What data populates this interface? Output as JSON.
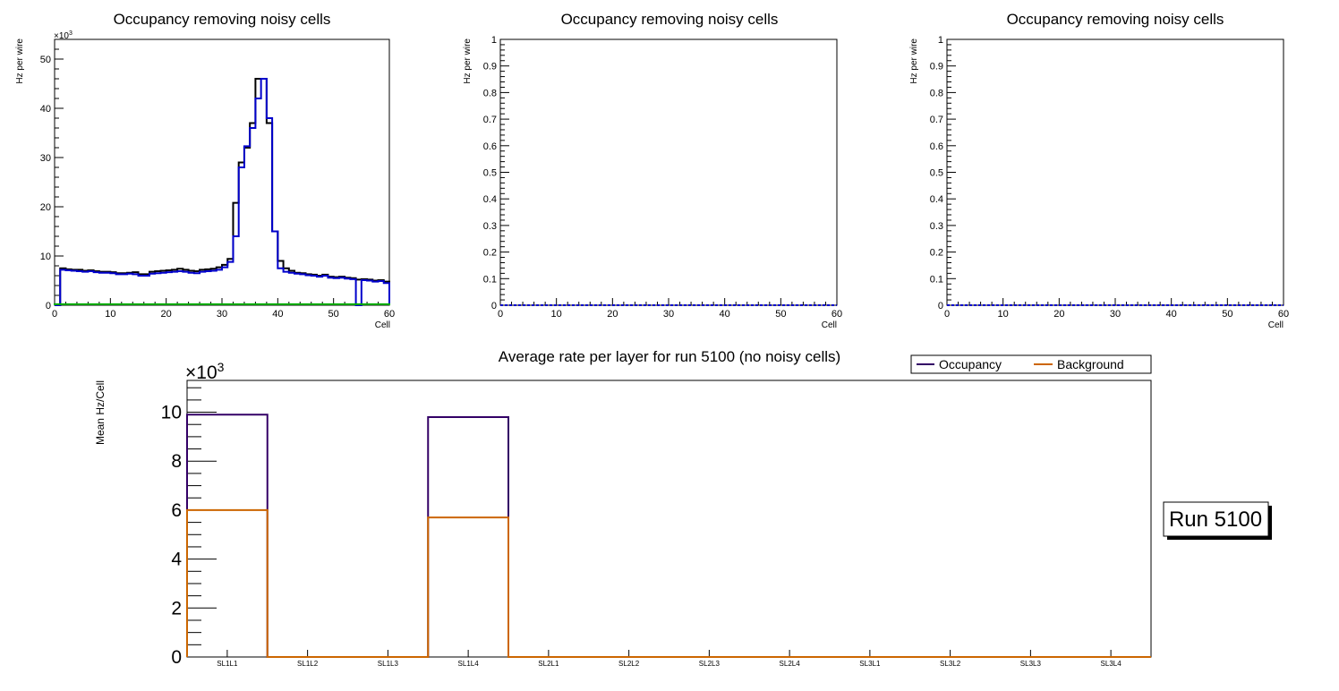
{
  "chart_data": [
    {
      "type": "step",
      "title": "Occupancy removing noisy cells",
      "xlabel": "Cell",
      "ylabel": "Hz per wire",
      "y_multiplier_label": "×10",
      "y_multiplier_exp": "3",
      "xlim": [
        0,
        60
      ],
      "ylim": [
        0,
        54
      ],
      "xticks": [
        0,
        10,
        20,
        30,
        40,
        50,
        60
      ],
      "yticks": [
        0,
        10,
        20,
        30,
        40,
        50
      ],
      "colors": {
        "black": "#000000",
        "blue": "#0000cc",
        "green": "#00b000"
      },
      "series": [
        {
          "name": "black",
          "bins_per_cell": true,
          "values": [
            0,
            7.5,
            7.3,
            7.2,
            7.2,
            7.0,
            7.1,
            6.9,
            6.8,
            6.8,
            6.7,
            6.5,
            6.5,
            6.6,
            6.7,
            6.3,
            6.3,
            6.8,
            6.9,
            7.0,
            7.1,
            7.2,
            7.4,
            7.2,
            7.0,
            6.9,
            7.2,
            7.3,
            7.4,
            7.7,
            8.2,
            9.4,
            20.8,
            29.0,
            32.0,
            37.0,
            46.0,
            46.0,
            37.0,
            15.0,
            9.0,
            7.5,
            7.0,
            6.6,
            6.5,
            6.3,
            6.2,
            6.0,
            6.2,
            5.8,
            5.7,
            5.8,
            5.6,
            5.5,
            5.2,
            5.3,
            5.2,
            5.0,
            5.1,
            4.8
          ]
        },
        {
          "name": "blue",
          "bins_per_cell": true,
          "values": [
            0,
            7.2,
            7.1,
            7.0,
            6.9,
            6.8,
            6.9,
            6.7,
            6.6,
            6.6,
            6.5,
            6.3,
            6.3,
            6.4,
            6.3,
            6.0,
            6.0,
            6.4,
            6.5,
            6.6,
            6.7,
            6.8,
            6.9,
            6.8,
            6.6,
            6.5,
            6.8,
            6.9,
            7.0,
            7.2,
            7.7,
            8.8,
            14.0,
            28.0,
            32.3,
            36.0,
            42.0,
            46.0,
            38.0,
            15.0,
            7.5,
            6.8,
            6.6,
            6.4,
            6.3,
            6.1,
            6.0,
            5.8,
            6.0,
            5.6,
            5.5,
            5.6,
            5.4,
            5.3,
            0,
            5.1,
            5.0,
            4.8,
            4.9,
            4.5
          ]
        },
        {
          "name": "green",
          "bins_per_cell": true,
          "values": [
            0.2,
            0.2,
            0.2,
            0.2,
            0.2,
            0.2,
            0.2,
            0.2,
            0.2,
            0.2,
            0.2,
            0.2,
            0.2,
            0.2,
            0.2,
            0.2,
            0.2,
            0.2,
            0.2,
            0.2,
            0.2,
            0.2,
            0.2,
            0.2,
            0.2,
            0.2,
            0.2,
            0.2,
            0.2,
            0.2,
            0.2,
            0.2,
            0.2,
            0.2,
            0.2,
            0.2,
            0.2,
            0.2,
            0.2,
            0.2,
            0.2,
            0.2,
            0.2,
            0.2,
            0.2,
            0.2,
            0.2,
            0.2,
            0.2,
            0.2,
            0.2,
            0.2,
            0.2,
            0.2,
            0.2,
            0.2,
            0.2,
            0.2,
            0.2,
            0.2
          ]
        }
      ]
    },
    {
      "type": "step",
      "title": "Occupancy removing noisy cells",
      "xlabel": "Cell",
      "ylabel": "Hz per wire",
      "xlim": [
        0,
        60
      ],
      "ylim": [
        0,
        1
      ],
      "xticks": [
        0,
        10,
        20,
        30,
        40,
        50,
        60
      ],
      "yticks": [
        "0",
        "0.1",
        "0.2",
        "0.3",
        "0.4",
        "0.5",
        "0.6",
        "0.7",
        "0.8",
        "0.9",
        "1"
      ],
      "series": [
        {
          "name": "blue",
          "constant": 0,
          "dashed": true
        }
      ]
    },
    {
      "type": "step",
      "title": "Occupancy removing noisy cells",
      "xlabel": "Cell",
      "ylabel": "Hz per wire",
      "xlim": [
        0,
        60
      ],
      "ylim": [
        0,
        1
      ],
      "xticks": [
        0,
        10,
        20,
        30,
        40,
        50,
        60
      ],
      "yticks": [
        "0",
        "0.1",
        "0.2",
        "0.3",
        "0.4",
        "0.5",
        "0.6",
        "0.7",
        "0.8",
        "0.9",
        "1"
      ],
      "series": [
        {
          "name": "blue",
          "constant": 0,
          "dashed": true
        }
      ]
    },
    {
      "type": "step",
      "title": "Average rate per layer for run 5100 (no noisy cells)",
      "xlabel": "",
      "ylabel": "Mean Hz/Cell",
      "y_multiplier_label": "×10",
      "y_multiplier_exp": "3",
      "categories": [
        "SL1L1",
        "SL1L2",
        "SL1L3",
        "SL1L4",
        "SL2L1",
        "SL2L2",
        "SL2L3",
        "SL2L4",
        "SL3L1",
        "SL3L2",
        "SL3L3",
        "SL3L4"
      ],
      "ylim": [
        0,
        11.3
      ],
      "yticks": [
        0,
        2,
        4,
        6,
        8,
        10
      ],
      "legend_position": "top-right",
      "series": [
        {
          "name": "Occupancy",
          "color": "#330066",
          "values": [
            9.9,
            0,
            0,
            9.8,
            0,
            0,
            0,
            0,
            0,
            0,
            0,
            0
          ]
        },
        {
          "name": "Background",
          "color": "#cc6600",
          "values": [
            6.0,
            0,
            0,
            5.7,
            0,
            0,
            0,
            0,
            0,
            0,
            0,
            0
          ]
        }
      ]
    }
  ],
  "run_label": "Run 5100"
}
